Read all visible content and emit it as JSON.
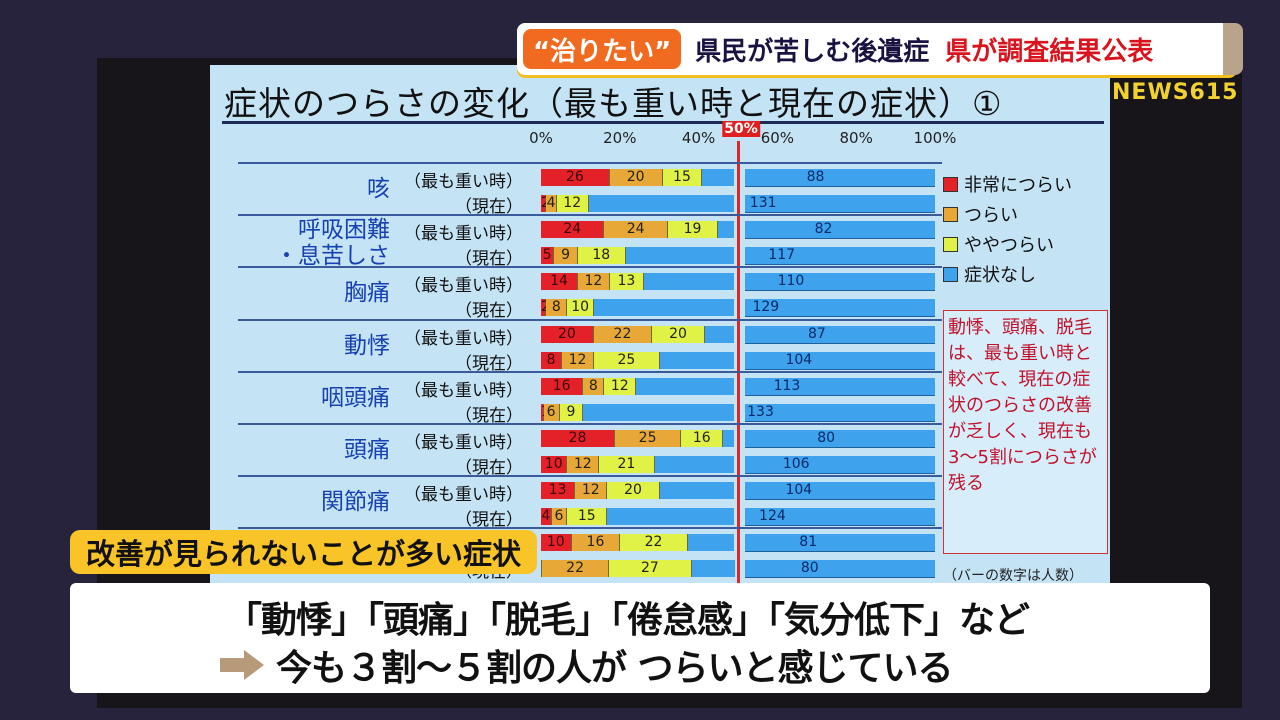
{
  "topbar": {
    "tag": "“治りたい”",
    "main": "県民が苦しむ後遺症",
    "sub": "県が調査結果公表"
  },
  "news_logo": "NEWS615",
  "slide": {
    "title": "症状のつらさの変化（最も重い時と現在の症状）①",
    "axis_ticks": [
      "0%",
      "20%",
      "40%",
      "60%",
      "80%",
      "100%"
    ],
    "marker_label": "50%",
    "sub_labels": {
      "worst": "（最も重い時）",
      "now": "（現在）"
    },
    "legend": [
      {
        "label": "非常につらい",
        "color": "#e42128"
      },
      {
        "label": "つらい",
        "color": "#e8a838"
      },
      {
        "label": "ややつらい",
        "color": "#dff245"
      },
      {
        "label": "症状なし",
        "color": "#3ea2ec"
      }
    ],
    "note": "動悸、頭痛、脱毛は、最も重い時と較べて、現在の症状のつらさの改善が乏しく、現在も3～5割につらさが残る",
    "footnote": "（バーの数字は人数）"
  },
  "chart_data": {
    "type": "bar",
    "orientation": "horizontal",
    "stacked": true,
    "percent_stacked": true,
    "title": "症状のつらさの変化（最も重い時と現在の症状）①",
    "xlabel": "",
    "ylabel": "",
    "xlim": [
      0,
      100
    ],
    "x_ticks": [
      "0%",
      "20%",
      "40%",
      "60%",
      "80%",
      "100%"
    ],
    "reference_line": {
      "value": 50,
      "label": "50%",
      "color": "#d8282a"
    },
    "legend_position": "right",
    "value_unit": "人数",
    "series_names": [
      "非常につらい",
      "つらい",
      "ややつらい",
      "症状なし"
    ],
    "categories": [
      {
        "symptom": "咳",
        "period": "最も重い時",
        "values": [
          26,
          20,
          15,
          88
        ]
      },
      {
        "symptom": "咳",
        "period": "現在",
        "values": [
          2,
          4,
          12,
          131
        ]
      },
      {
        "symptom": "呼吸困難・息苦しさ",
        "period": "最も重い時",
        "values": [
          24,
          24,
          19,
          82
        ]
      },
      {
        "symptom": "呼吸困難・息苦しさ",
        "period": "現在",
        "values": [
          5,
          9,
          18,
          117
        ]
      },
      {
        "symptom": "胸痛",
        "period": "最も重い時",
        "values": [
          14,
          12,
          13,
          110
        ]
      },
      {
        "symptom": "胸痛",
        "period": "現在",
        "values": [
          2,
          8,
          10,
          129
        ]
      },
      {
        "symptom": "動悸",
        "period": "最も重い時",
        "values": [
          20,
          22,
          20,
          87
        ]
      },
      {
        "symptom": "動悸",
        "period": "現在",
        "values": [
          8,
          12,
          25,
          104
        ]
      },
      {
        "symptom": "咽頭痛",
        "period": "最も重い時",
        "values": [
          16,
          8,
          12,
          113
        ]
      },
      {
        "symptom": "咽頭痛",
        "period": "現在",
        "values": [
          1,
          6,
          9,
          133
        ]
      },
      {
        "symptom": "頭痛",
        "period": "最も重い時",
        "values": [
          28,
          25,
          16,
          80
        ]
      },
      {
        "symptom": "頭痛",
        "period": "現在",
        "values": [
          10,
          12,
          21,
          106
        ]
      },
      {
        "symptom": "関節痛",
        "period": "最も重い時",
        "values": [
          13,
          12,
          20,
          104
        ]
      },
      {
        "symptom": "関節痛",
        "period": "現在",
        "values": [
          4,
          6,
          15,
          124
        ]
      },
      {
        "symptom": "(hidden)",
        "period": "最も重い時",
        "values": [
          null,
          16,
          22,
          81
        ]
      },
      {
        "symptom": "(hidden)",
        "period": "現在",
        "values": [
          null,
          22,
          27,
          80
        ]
      }
    ]
  },
  "rows": [
    {
      "symptom": "咳",
      "lines": [
        "咳"
      ],
      "worst": [
        26,
        20,
        15,
        88
      ],
      "now": [
        2,
        4,
        12,
        131
      ],
      "now_labels": [
        "2",
        "4",
        "12",
        "131"
      ]
    },
    {
      "symptom": "呼吸困難・息苦しさ",
      "lines": [
        "呼吸困難",
        "・息苦しさ"
      ],
      "worst": [
        24,
        24,
        19,
        82
      ],
      "now": [
        5,
        9,
        18,
        117
      ],
      "now_labels": [
        "5",
        "9",
        "18",
        "117"
      ]
    },
    {
      "symptom": "胸痛",
      "lines": [
        "胸痛"
      ],
      "worst": [
        14,
        12,
        13,
        110
      ],
      "now": [
        2,
        8,
        10,
        129
      ],
      "now_labels": [
        "2",
        "8",
        "10",
        "129"
      ]
    },
    {
      "symptom": "動悸",
      "lines": [
        "動悸"
      ],
      "worst": [
        20,
        22,
        20,
        87
      ],
      "now": [
        8,
        12,
        25,
        104
      ],
      "now_labels": [
        "8",
        "12",
        "25",
        "104"
      ]
    },
    {
      "symptom": "咽頭痛",
      "lines": [
        "咽頭痛"
      ],
      "worst": [
        16,
        8,
        12,
        113
      ],
      "now": [
        1,
        6,
        9,
        133
      ],
      "now_labels": [
        "1",
        "6",
        "9",
        "133"
      ]
    },
    {
      "symptom": "頭痛",
      "lines": [
        "頭痛"
      ],
      "worst": [
        28,
        25,
        16,
        80
      ],
      "now": [
        10,
        12,
        21,
        106
      ],
      "now_labels": [
        "10",
        "12",
        "21",
        "106"
      ]
    },
    {
      "symptom": "関節痛",
      "lines": [
        "関節痛"
      ],
      "worst": [
        13,
        12,
        20,
        104
      ],
      "now": [
        4,
        6,
        15,
        124
      ],
      "now_labels": [
        "4",
        "6",
        "15",
        "124"
      ]
    },
    {
      "symptom": "",
      "lines": [
        ""
      ],
      "worst": [
        10,
        16,
        22,
        81
      ],
      "now": [
        0,
        22,
        27,
        80
      ],
      "now_labels": [
        "",
        "22",
        "27",
        "80"
      ]
    }
  ],
  "subhead": "改善が見られないことが多い症状",
  "caption": {
    "line1": "「動悸」「頭痛」「脱毛」「倦怠感」「気分低下」など",
    "line2": "今も３割～５割の人が つらいと感じている",
    "arrow_icon": "right-arrow-icon"
  }
}
